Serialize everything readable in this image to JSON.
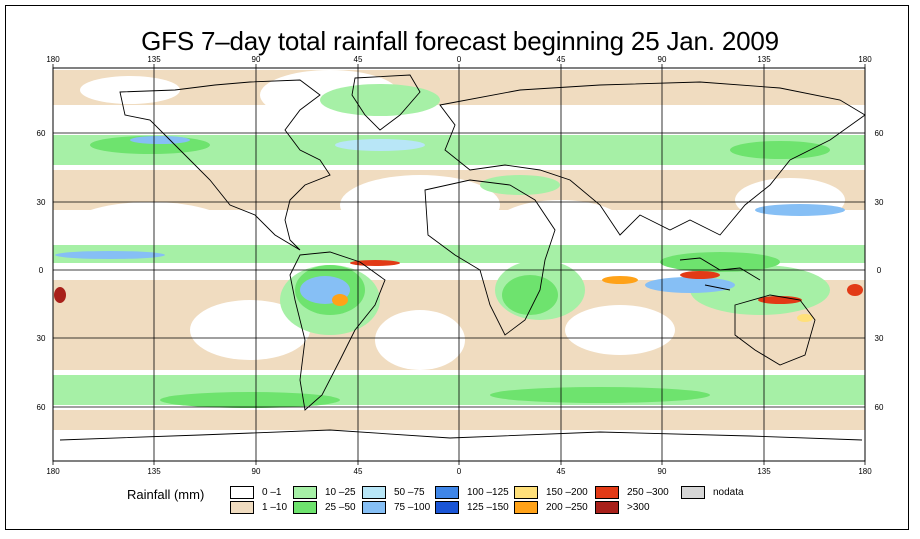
{
  "title": "GFS 7–day total rainfall forecast beginning 25 Jan. 2009",
  "map": {
    "lon_ticks_top": [
      "180",
      "135",
      "90",
      "45",
      "0",
      "45",
      "90",
      "135",
      "180"
    ],
    "lon_ticks_bottom": [
      "180",
      "135",
      "90",
      "45",
      "0",
      "45",
      "90",
      "135",
      "180"
    ],
    "lat_ticks_left": [
      "60",
      "30",
      "0",
      "30",
      "60"
    ],
    "lat_ticks_right": [
      "60",
      "30",
      "0",
      "30",
      "60"
    ]
  },
  "legend": {
    "title": "Rainfall (mm)",
    "items": [
      {
        "label": "0 –1",
        "color": "#ffffff"
      },
      {
        "label": "1 –10",
        "color": "#f0dcc0"
      },
      {
        "label": "10 –25",
        "color": "#a6f0a6"
      },
      {
        "label": "25 –50",
        "color": "#6ee36e"
      },
      {
        "label": "50 –75",
        "color": "#b8e6f7"
      },
      {
        "label": "75 –100",
        "color": "#86bff5"
      },
      {
        "label": "100 –125",
        "color": "#3f86e8"
      },
      {
        "label": "125 –150",
        "color": "#1a55d6"
      },
      {
        "label": "150 –200",
        "color": "#ffe07a"
      },
      {
        "label": "200 –250",
        "color": "#ffa218"
      },
      {
        "label": "250 –300",
        "color": "#e23a16"
      },
      {
        "label": ">300",
        "color": "#a8201a"
      },
      {
        "label": "nodata",
        "color": "#d6d6d6"
      }
    ]
  }
}
